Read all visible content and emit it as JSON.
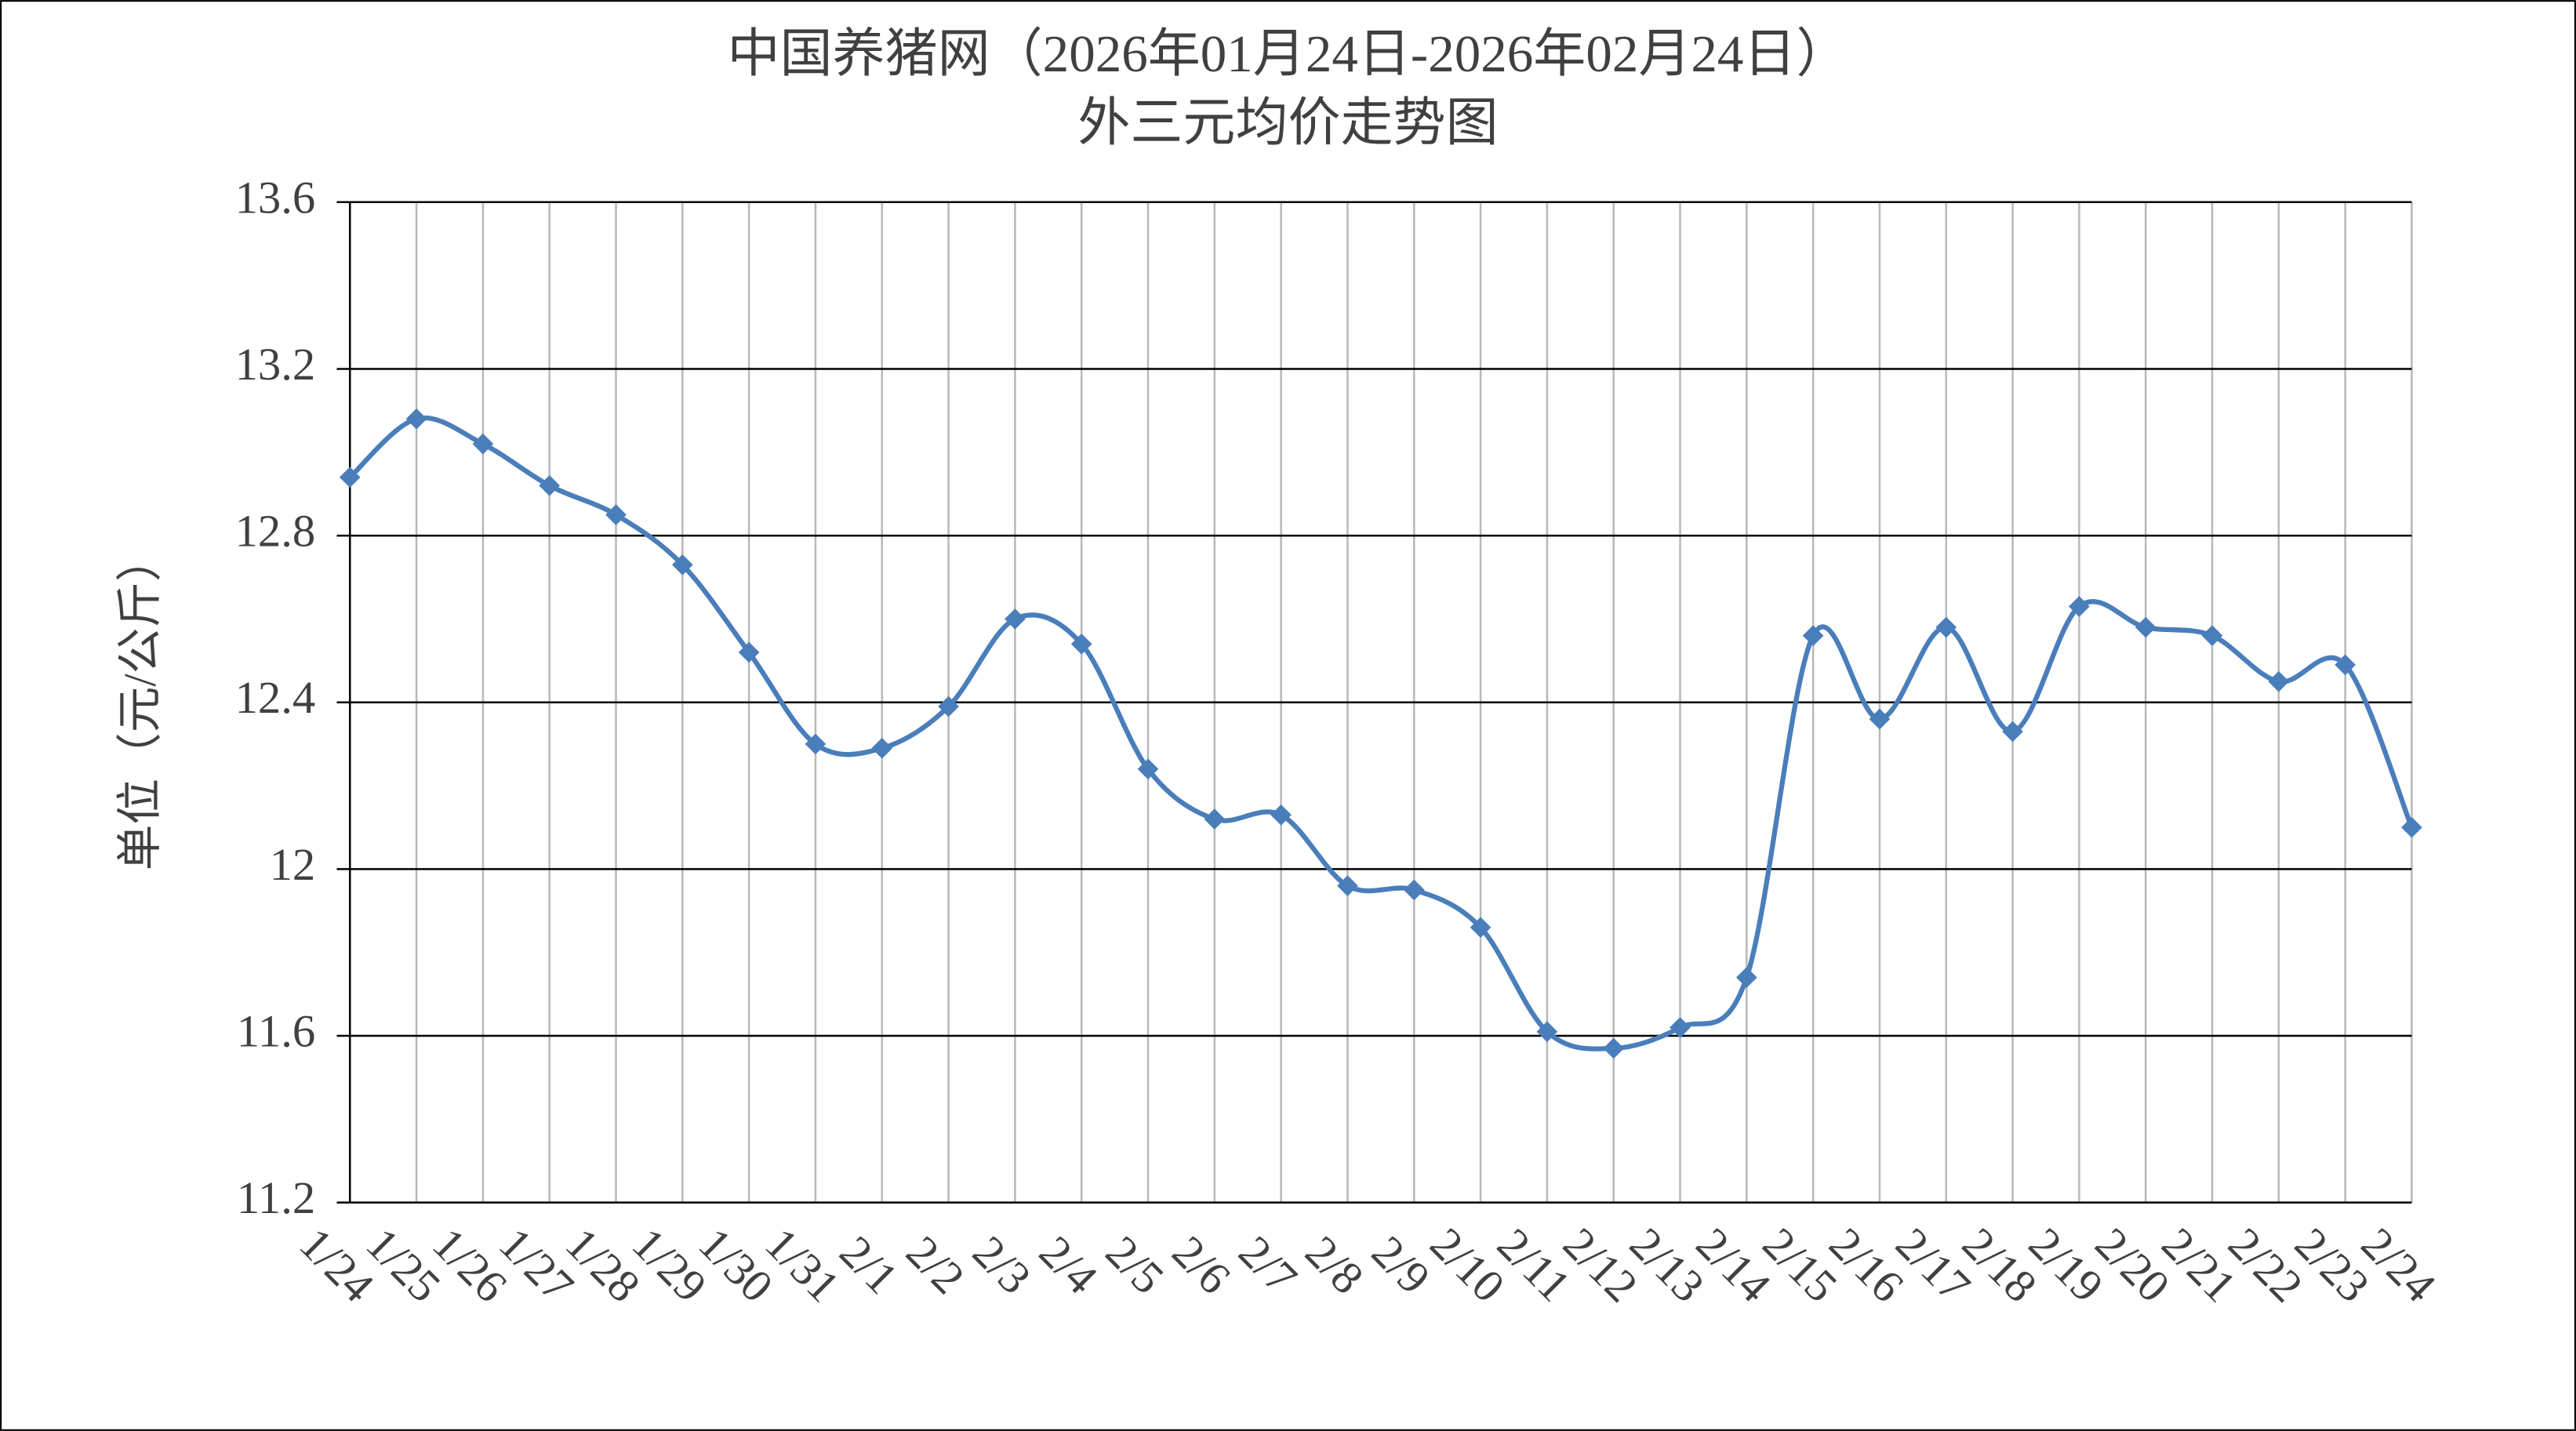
{
  "chart_data": {
    "type": "line",
    "title": "中国养猪网（2026年01月24日-2026年02月24日）",
    "subtitle": "外三元均价走势图",
    "y_label": "单位（元/公斤）",
    "categories": [
      "1/24",
      "1/25",
      "1/26",
      "1/27",
      "1/28",
      "1/29",
      "1/30",
      "1/31",
      "2/1",
      "2/2",
      "2/3",
      "2/4",
      "2/5",
      "2/6",
      "2/7",
      "2/8",
      "2/9",
      "2/10",
      "2/11",
      "2/12",
      "2/13",
      "2/14",
      "2/15",
      "2/16",
      "2/17",
      "2/18",
      "2/19",
      "2/20",
      "2/21",
      "2/22",
      "2/23",
      "2/24"
    ],
    "values": [
      12.94,
      13.08,
      13.02,
      12.92,
      12.85,
      12.73,
      12.52,
      12.3,
      12.29,
      12.39,
      12.6,
      12.54,
      12.24,
      12.12,
      12.13,
      11.96,
      11.95,
      11.86,
      11.61,
      11.57,
      11.62,
      11.74,
      12.56,
      12.36,
      12.58,
      12.33,
      12.63,
      12.58,
      12.56,
      12.45,
      12.49,
      12.1
    ],
    "color": "#4a7ebb",
    "ylim": [
      11.2,
      13.6
    ],
    "yticks": [
      11.2,
      11.6,
      12,
      12.4,
      12.8,
      13.2,
      13.6
    ],
    "grid": true
  }
}
